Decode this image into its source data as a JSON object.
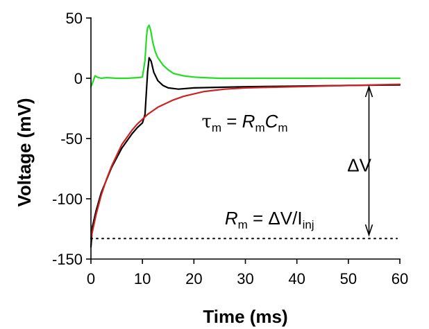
{
  "chart_data": {
    "type": "line",
    "xlabel": "Time (ms)",
    "ylabel": "Voltage (mV)",
    "xlim": [
      0,
      60
    ],
    "ylim": [
      -150,
      50
    ],
    "x_ticks": [
      0,
      10,
      20,
      30,
      40,
      50,
      60
    ],
    "y_ticks": [
      -150,
      -100,
      -50,
      0,
      50
    ],
    "x_tick_labels": [
      "0",
      "10",
      "20",
      "30",
      "40",
      "50",
      "60"
    ],
    "y_tick_labels": [
      "-150",
      "-100",
      "-50",
      "0",
      "50"
    ],
    "grid": false,
    "legend": "none",
    "series": [
      {
        "color": "#22dd22",
        "x": [
          0,
          0.4,
          0.8,
          1.2,
          2,
          3,
          5,
          7,
          9,
          10,
          10.5,
          10.8,
          11.0,
          11.3,
          11.6,
          12,
          12.5,
          13,
          14,
          15,
          16,
          18,
          20,
          22,
          25,
          30,
          40,
          50,
          60
        ],
        "y": [
          -7,
          -3,
          2,
          1,
          0,
          0.5,
          0,
          0,
          0.5,
          1,
          15,
          35,
          42,
          44,
          40,
          30,
          22,
          17,
          11,
          7,
          4,
          2,
          1,
          0.5,
          0,
          0,
          0,
          0,
          0
        ]
      },
      {
        "color": "#000000",
        "x": [
          0,
          0.3,
          1,
          2,
          4,
          6,
          8,
          9,
          10,
          10.5,
          11.0,
          11.3,
          11.7,
          12.2,
          13,
          14,
          15,
          17,
          20,
          25,
          30,
          40,
          50,
          60
        ],
        "y": [
          -140,
          -123,
          -110,
          -95,
          -74,
          -58,
          -46,
          -41,
          -37,
          -30,
          5,
          17,
          14,
          5,
          -2,
          -6,
          -8,
          -9,
          -8,
          -7.5,
          -7,
          -6.5,
          -6,
          -5.5
        ]
      },
      {
        "color": "#cc2222",
        "x": [
          0,
          1,
          2,
          3,
          4,
          5,
          6,
          7,
          8,
          9,
          10,
          11,
          12,
          13,
          14,
          15,
          16,
          18,
          20,
          22,
          24,
          26,
          28,
          30,
          35,
          40,
          45,
          50,
          55,
          60
        ],
        "y": [
          -133,
          -113,
          -97,
          -84,
          -73,
          -64,
          -55,
          -49,
          -43,
          -38,
          -34,
          -30,
          -27,
          -24,
          -22,
          -20,
          -18,
          -15,
          -13,
          -11,
          -10,
          -9,
          -8.5,
          -8,
          -7.5,
          -7,
          -6.5,
          -6,
          -5.5,
          -5
        ]
      }
    ],
    "reference_line": {
      "y": -133,
      "x_range": [
        0,
        60
      ],
      "style": "dotted",
      "color": "#000000"
    },
    "arrow": {
      "x": 54,
      "y_from": -7,
      "y_to": -130,
      "style": "double-headed"
    },
    "annotations": {
      "tau_eq": {
        "sym": "τ",
        "sub1": "m",
        "eq": " = ",
        "r": "R",
        "sub2": "m",
        "c": "C",
        "sub3": "m",
        "x": 21.5,
        "y": -35
      },
      "delta_v": {
        "text": "ΔV",
        "x": 51,
        "y": -72
      },
      "rm_eq": {
        "r": "R",
        "sub1": "m",
        "eq": " = ",
        "mid": "ΔV/I",
        "sub2": "inj",
        "x": 26,
        "y": -116
      }
    }
  }
}
